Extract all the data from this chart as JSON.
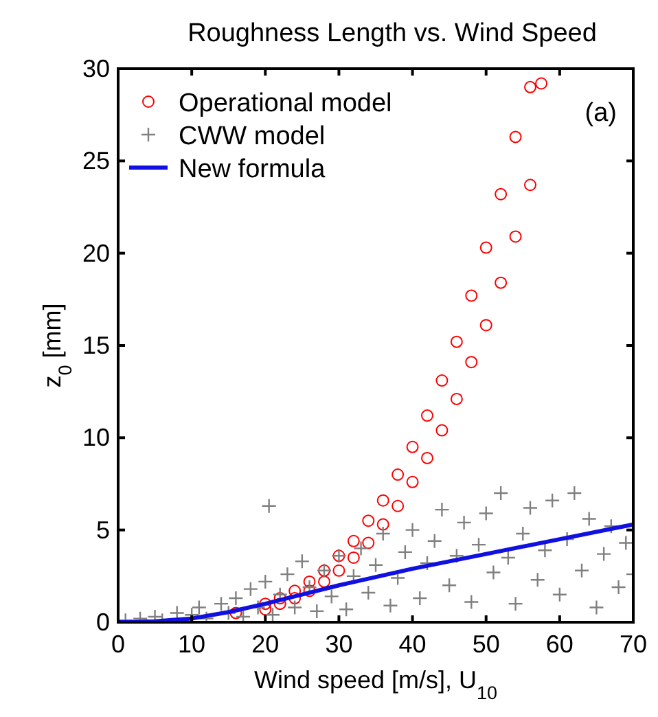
{
  "chart_data": {
    "type": "scatter",
    "title": "Roughness Length vs. Wind Speed",
    "xlabel": "Wind speed [m/s], U$_{10}$",
    "ylabel": "z$_{0}$ [mm]",
    "annotations": [
      "(a)"
    ],
    "xlim": [
      0,
      70
    ],
    "ylim": [
      0,
      30
    ],
    "xticks": [
      0,
      10,
      20,
      30,
      40,
      50,
      60,
      70
    ],
    "yticks": [
      0,
      5,
      10,
      15,
      20,
      25,
      30
    ],
    "legend": "top left",
    "series": [
      {
        "name": "Operational model",
        "marker": "circle",
        "color": "#ff0000",
        "x": [
          16,
          20,
          20,
          22,
          22,
          24,
          24,
          26,
          26,
          28,
          28,
          30,
          30,
          32,
          32,
          34,
          34,
          36,
          36,
          38,
          38,
          40,
          40,
          42,
          42,
          44,
          44,
          46,
          46,
          48,
          48,
          50,
          50,
          52,
          52,
          54,
          54,
          56,
          56,
          57.5
        ],
        "values": [
          0.5,
          1.0,
          0.7,
          1.3,
          1.0,
          1.7,
          1.3,
          2.2,
          1.7,
          2.8,
          2.2,
          3.6,
          2.8,
          4.4,
          3.5,
          5.5,
          4.3,
          6.6,
          5.3,
          8.0,
          6.3,
          9.5,
          7.6,
          11.2,
          8.9,
          13.1,
          10.4,
          15.2,
          12.1,
          17.7,
          14.1,
          20.3,
          16.1,
          23.2,
          18.4,
          26.3,
          20.9,
          29.0,
          23.7,
          29.2
        ]
      },
      {
        "name": "CWW model",
        "marker": "cross",
        "color": "#808080",
        "x": [
          1,
          3,
          5,
          6,
          8,
          10,
          11,
          12,
          14,
          15,
          16,
          17,
          18,
          19,
          20,
          20.5,
          21,
          22,
          23,
          24,
          25,
          26,
          27,
          28,
          29,
          30,
          31,
          32,
          33,
          34,
          35,
          36,
          37,
          38,
          39,
          40,
          41,
          42,
          43,
          44,
          45,
          46,
          47,
          48,
          49,
          50,
          51,
          52,
          53,
          54,
          55,
          56,
          57,
          58,
          59,
          60,
          61,
          62,
          63,
          64,
          65,
          66,
          67,
          68,
          69,
          70
        ],
        "values": [
          0.1,
          0.2,
          0.3,
          0.1,
          0.5,
          0.4,
          0.8,
          0.2,
          1.0,
          0.5,
          1.3,
          0.3,
          1.8,
          0.8,
          2.2,
          6.3,
          0.4,
          1.5,
          2.6,
          0.8,
          3.3,
          1.9,
          0.6,
          2.8,
          1.4,
          3.6,
          0.7,
          2.5,
          4.0,
          1.6,
          3.1,
          4.8,
          0.9,
          2.4,
          3.8,
          5.0,
          1.3,
          3.2,
          4.4,
          6.1,
          2.0,
          3.6,
          5.4,
          1.1,
          4.2,
          5.9,
          2.7,
          7.0,
          3.5,
          1.0,
          4.8,
          6.2,
          2.3,
          3.9,
          6.6,
          1.5,
          4.5,
          7.0,
          2.8,
          5.6,
          0.8,
          3.7,
          5.2,
          1.9,
          4.3,
          2.6
        ]
      },
      {
        "name": "New formula",
        "type": "line",
        "marker": "none",
        "color": "#1010e0",
        "x": [
          0,
          5,
          10,
          15,
          20,
          25,
          30,
          40,
          50,
          60,
          70
        ],
        "values": [
          0,
          0.05,
          0.2,
          0.55,
          1.0,
          1.5,
          2.0,
          2.9,
          3.7,
          4.5,
          5.3
        ]
      }
    ]
  }
}
